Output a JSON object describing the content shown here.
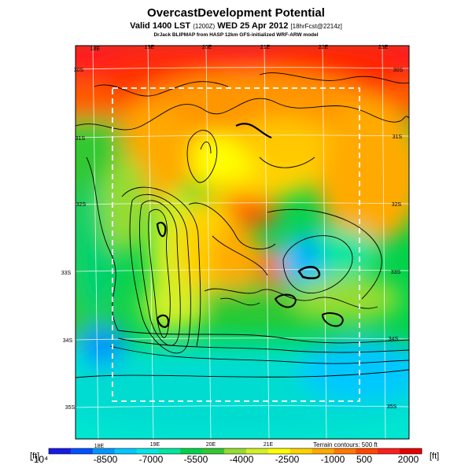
{
  "header": {
    "title": "OvercastDevelopment Potential",
    "subtitle_main": "Valid 1400 LST",
    "subtitle_zulu": "(1200Z)",
    "subtitle_date": "WED 25 Apr 2012",
    "subtitle_fcst": "[18hrFcst@2214z]",
    "credit": "DrJack BLIPMAP from HASP 12km GFS-initialized WRF-ARW model"
  },
  "map": {
    "lon_labels_top": [
      "18E",
      "19E",
      "20E",
      "21E",
      "22E",
      "23E"
    ],
    "lon_labels_bottom": [
      "18E",
      "19E",
      "20E",
      "21E"
    ],
    "lat_labels_right": [
      "30S",
      "31S",
      "32S",
      "33S",
      "34S",
      "35S"
    ],
    "lat_labels_left": [
      "30S",
      "31S",
      "32S",
      "33S",
      "34S",
      "35S"
    ],
    "terrain_note": "Terrain contours: 500 ft"
  },
  "colorbar": {
    "unit_left": "[ft]",
    "unit_right": "[ft]",
    "tick_labels": [
      "-10⁴",
      "-8500",
      "-7000",
      "-5500",
      "-4000",
      "-2500",
      "-1000",
      "500",
      "2000"
    ],
    "colors": [
      "#1a1ae6",
      "#0050ff",
      "#0096ff",
      "#00c8ff",
      "#00e6e6",
      "#00e6a0",
      "#00d24b",
      "#32c832",
      "#96dc32",
      "#d2f028",
      "#ffff00",
      "#ffd200",
      "#ffaa00",
      "#ff7800",
      "#ff4600",
      "#ff1e1e",
      "#e60000"
    ]
  }
}
